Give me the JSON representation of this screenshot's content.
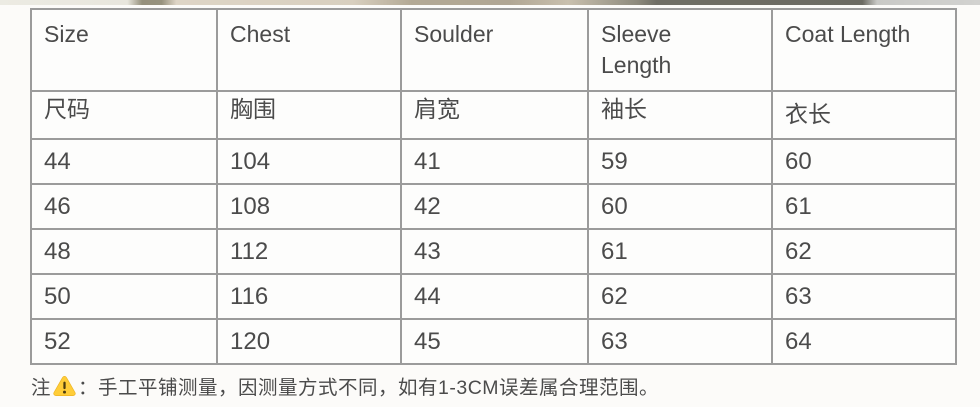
{
  "colors": {
    "page_background": "#fcfbf9",
    "table_background": "#fdfdfc",
    "border": "#9b9b9b",
    "text": "#4b4b4b",
    "warning_yellow": "#ffcd38"
  },
  "table": {
    "columns": [
      {
        "en": "Size",
        "cn": "尺码"
      },
      {
        "en": "Chest",
        "cn": "胸围"
      },
      {
        "en": "Soulder",
        "cn": "肩宽"
      },
      {
        "en": "Sleeve\nLength",
        "cn": "袖长"
      },
      {
        "en": "Coat Length",
        "cn": "衣长"
      }
    ],
    "rows": [
      [
        "44",
        "104",
        "41",
        "59",
        "60"
      ],
      [
        "46",
        "108",
        "42",
        "60",
        "61"
      ],
      [
        "48",
        "112",
        "43",
        "61",
        "62"
      ],
      [
        "50",
        "116",
        "44",
        "62",
        "63"
      ],
      [
        "52",
        "120",
        "45",
        "63",
        "64"
      ]
    ]
  },
  "footnote": {
    "prefix": "注",
    "warning_icon": "warning-triangle-icon",
    "separator": "：",
    "text": "手工平铺测量，因测量方式不同，如有1-3CM误差属合理范围。"
  }
}
